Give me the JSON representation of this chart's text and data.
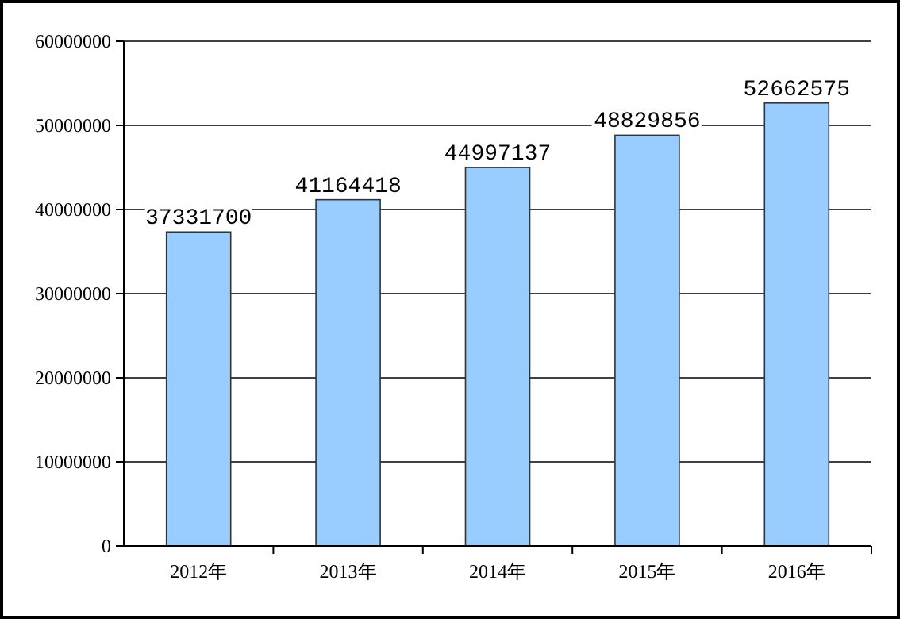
{
  "chart_data": {
    "type": "bar",
    "categories": [
      "2012年",
      "2013年",
      "2014年",
      "2015年",
      "2016年"
    ],
    "values": [
      37331700,
      41164418,
      44997137,
      48829856,
      52662575
    ],
    "color": "#99ccff",
    "ylim": [
      0,
      60000000
    ],
    "yticks": [
      0,
      10000000,
      20000000,
      30000000,
      40000000,
      50000000,
      60000000
    ],
    "grid": "y",
    "data_labels": true
  }
}
